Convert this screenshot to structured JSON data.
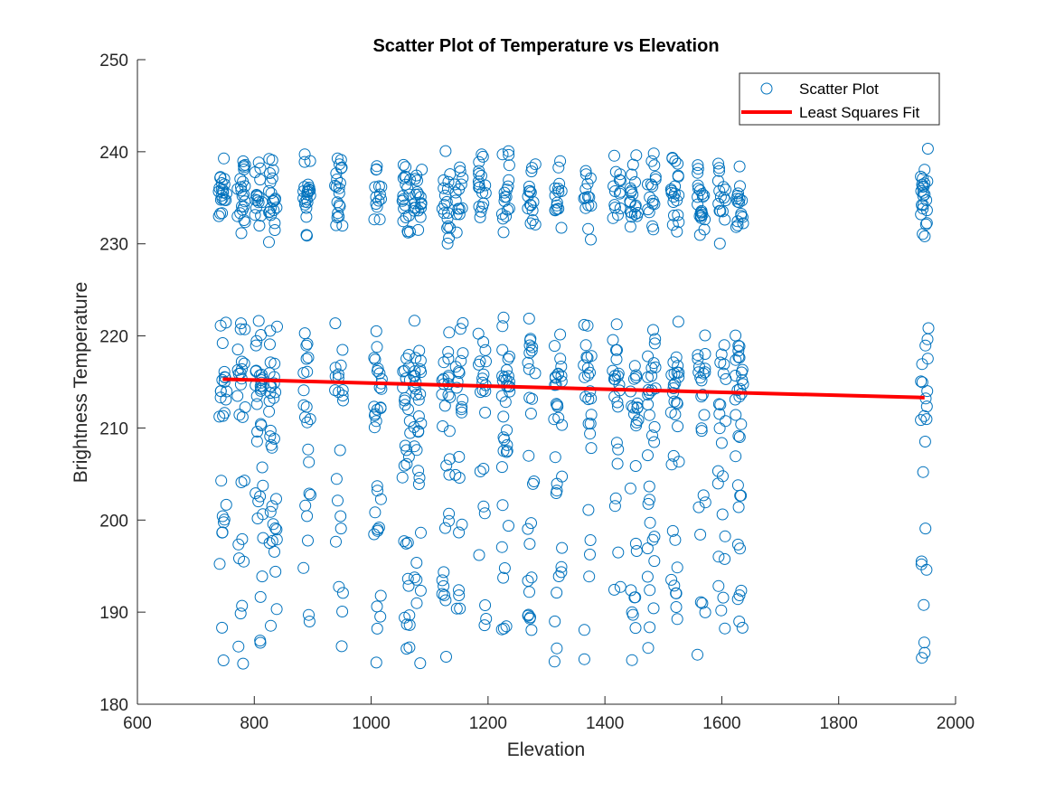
{
  "chart_data": {
    "type": "scatter",
    "title": "Scatter Plot of Temperature vs Elevation",
    "xlabel": "Elevation",
    "ylabel": "Brightness Temperature",
    "xlim": [
      600,
      2000
    ],
    "ylim": [
      180,
      250
    ],
    "xticks": [
      600,
      800,
      1000,
      1200,
      1400,
      1600,
      1800,
      2000
    ],
    "yticks": [
      180,
      190,
      200,
      210,
      220,
      230,
      240,
      250
    ],
    "grid": false,
    "legend_position": "top-right",
    "colors": {
      "scatter": "#0072BD",
      "fit": "#FF0000",
      "axis": "#262626"
    },
    "series": [
      {
        "name": "Scatter Plot",
        "marker": "open-circle",
        "x_columns": [
          746,
          778,
          808,
          832,
          890,
          945,
          1012,
          1060,
          1080,
          1128,
          1150,
          1190,
          1230,
          1275,
          1320,
          1370,
          1420,
          1450,
          1480,
          1520,
          1565,
          1600,
          1630,
          1947
        ],
        "upper_cluster": {
          "y_min": 230,
          "y_max": 240.5,
          "dense_center": 235
        },
        "lower_cluster": {
          "y_min": 184,
          "y_max": 222,
          "dense_center": 215
        }
      },
      {
        "name": "Least Squares Fit",
        "type": "line",
        "x": [
          746,
          1947
        ],
        "y": [
          215.3,
          213.3
        ]
      }
    ]
  }
}
